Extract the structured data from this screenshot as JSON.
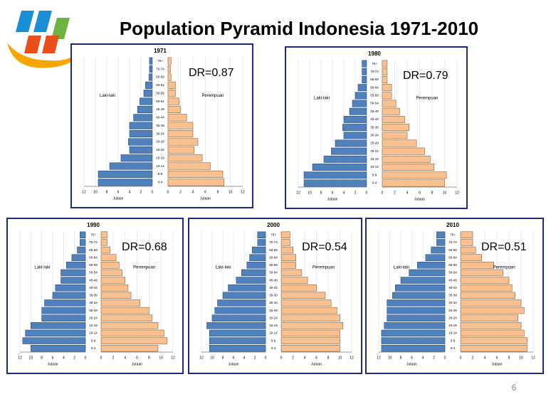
{
  "slide": {
    "title": "Population Pyramid Indonesia 1971-2010",
    "page": "6"
  },
  "chart_data": [
    {
      "type": "pyramid",
      "title": "1971",
      "annotation": "DR=0.87",
      "xlabel": "Jutaan",
      "grid": true,
      "categories": [
        "0-4",
        "5-9",
        "10-14",
        "15-19",
        "20-24",
        "25-29",
        "30-34",
        "35-39",
        "40-44",
        "45-49",
        "50-54",
        "55-59",
        "60-64",
        "65-69",
        "70-74",
        "75+"
      ],
      "xlim": [
        0,
        12
      ],
      "xticks": [
        0,
        2,
        4,
        6,
        8,
        10,
        12
      ],
      "series": [
        {
          "name": "Laki-laki",
          "color": "#4f81bd",
          "values": [
            9.5,
            9.5,
            7.5,
            5.5,
            4,
            4.2,
            4,
            4,
            3.3,
            2.6,
            2.2,
            1.5,
            1.2,
            0.6,
            0.5,
            0.5
          ]
        },
        {
          "name": "Perempuan",
          "color": "#fac090",
          "values": [
            9,
            8.8,
            6.8,
            5.5,
            4.2,
            4.8,
            4,
            4,
            3,
            2,
            1.8,
            1.2,
            1.2,
            0.5,
            0.4,
            0.5
          ]
        }
      ]
    },
    {
      "type": "pyramid",
      "title": "1980",
      "annotation": "DR=0.79",
      "xlabel": "Jutaan",
      "grid": true,
      "categories": [
        "0-4",
        "5-9",
        "10-14",
        "15-19",
        "20-24",
        "25-29",
        "30-34",
        "35-39",
        "40-44",
        "45-49",
        "50-54",
        "55-59",
        "60-64",
        "65-69",
        "70-74",
        "75+"
      ],
      "xlim": [
        0,
        12
      ],
      "xticks": [
        0,
        2,
        4,
        6,
        8,
        10,
        12
      ],
      "series": [
        {
          "name": "Laki-laki",
          "color": "#4f81bd",
          "values": [
            11,
            11,
            9.5,
            7.5,
            6.2,
            5.5,
            4,
            4.2,
            4,
            3,
            2.5,
            2,
            1.5,
            0.8,
            0.8,
            0.8
          ]
        },
        {
          "name": "Perempuan",
          "color": "#fac090",
          "values": [
            10,
            10.3,
            8.3,
            7.7,
            6.8,
            5.5,
            4,
            4.3,
            3.6,
            2.8,
            2.2,
            1.5,
            1.5,
            0.8,
            0.8,
            0.8
          ]
        }
      ]
    },
    {
      "type": "pyramid",
      "title": "1990",
      "annotation": "DR=0.68",
      "xlabel": "Jutaan",
      "grid": true,
      "categories": [
        "0-4",
        "5-9",
        "10-14",
        "15-19",
        "20-24",
        "25-29",
        "30-34",
        "35-39",
        "40-44",
        "45-49",
        "50-54",
        "55-59",
        "60-64",
        "65-69",
        "70-74",
        "75+"
      ],
      "xlim": [
        0,
        12
      ],
      "xticks": [
        0,
        2,
        4,
        6,
        8,
        10,
        12
      ],
      "series": [
        {
          "name": "Laki-laki",
          "color": "#4f81bd",
          "values": [
            10,
            11.5,
            11,
            10,
            8,
            8,
            7.5,
            6,
            5.5,
            4.5,
            4.5,
            3.5,
            2.5,
            1.5,
            1,
            1
          ]
        },
        {
          "name": "Perempuan",
          "color": "#fac090",
          "values": [
            9.5,
            11,
            10.5,
            9.5,
            8.5,
            8,
            6.5,
            5,
            4.5,
            4,
            3.5,
            3,
            2.5,
            1.5,
            1,
            1
          ]
        }
      ]
    },
    {
      "type": "pyramid",
      "title": "2000",
      "annotation": "DR=0.54",
      "xlabel": "Jutaan",
      "grid": true,
      "categories": [
        "0-4",
        "5-9",
        "10-14",
        "15-19",
        "20-24",
        "25-29",
        "30-34",
        "35-39",
        "40-44",
        "45-49",
        "50-54",
        "55-59",
        "60-64",
        "65-69",
        "70-74",
        "75+"
      ],
      "xlim": [
        0,
        12
      ],
      "xticks": [
        0,
        2,
        4,
        6,
        8,
        10,
        12
      ],
      "series": [
        {
          "name": "Laki-laki",
          "color": "#4f81bd",
          "values": [
            10.5,
            10.5,
            10.5,
            11,
            10,
            9.5,
            9,
            8,
            7,
            5.5,
            4.5,
            3.5,
            3,
            2.5,
            1.5,
            1.5
          ]
        },
        {
          "name": "Perempuan",
          "color": "#fac090",
          "values": [
            10,
            10,
            10,
            10.5,
            10,
            9.5,
            8.5,
            7.5,
            6,
            4.5,
            3.5,
            2.5,
            2.5,
            2,
            1.5,
            1.5
          ]
        }
      ]
    },
    {
      "type": "pyramid",
      "title": "2010",
      "annotation": "DR=0.51",
      "xlabel": "Jutaan",
      "grid": true,
      "categories": [
        "0-4",
        "5-9",
        "10-14",
        "15-19",
        "20-24",
        "25-29",
        "30-34",
        "35-39",
        "40-44",
        "45-49",
        "50-54",
        "55-59",
        "60-64",
        "65-69",
        "70-74",
        "75+"
      ],
      "xlim": [
        0,
        12
      ],
      "xticks": [
        0,
        2,
        4,
        6,
        8,
        10,
        12
      ],
      "series": [
        {
          "name": "Laki-laki",
          "color": "#4f81bd",
          "values": [
            11.5,
            11.5,
            11.5,
            11,
            10.5,
            10.5,
            10.5,
            9.5,
            9,
            8,
            6.5,
            5,
            3.5,
            2.5,
            1.5,
            1.5
          ]
        },
        {
          "name": "Perempuan",
          "color": "#fac090",
          "values": [
            11,
            11,
            10.5,
            10,
            9.5,
            10.5,
            10,
            9,
            8.5,
            8,
            7,
            5.5,
            3.5,
            2.5,
            2,
            2
          ]
        }
      ]
    }
  ]
}
